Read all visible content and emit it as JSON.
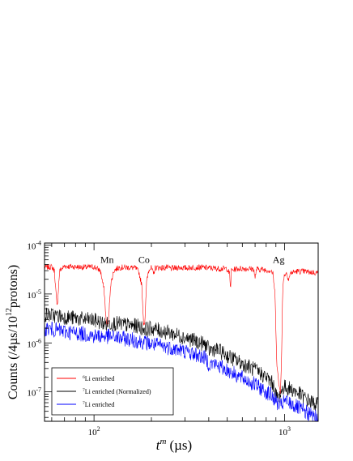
{
  "chart_data": {
    "type": "line",
    "xlabel_base": "t",
    "xlabel_sup": "m",
    "xlabel_units": "(µs)",
    "ylabel_main": "Counts (/4µs/10",
    "ylabel_sup": "12",
    "ylabel_tail": "protons)",
    "x_scale": "log",
    "y_scale": "log",
    "xlim": [
      55,
      1500
    ],
    "ylim": [
      2.5e-08,
      0.00011
    ],
    "x_ticks": [
      {
        "value": 100,
        "base": "10",
        "exp": "2"
      },
      {
        "value": 1000,
        "base": "10",
        "exp": "3"
      }
    ],
    "y_ticks": [
      {
        "value": 1e-07,
        "base": "10",
        "exp": "-7"
      },
      {
        "value": 1e-06,
        "base": "10",
        "exp": "-6"
      },
      {
        "value": 1e-05,
        "base": "10",
        "exp": "-5"
      },
      {
        "value": 0.0001,
        "base": "10",
        "exp": "-4"
      }
    ],
    "legend_position": "bottom-left",
    "series": [
      {
        "name_sup": "6",
        "name": "Li enriched",
        "color": "#ff0000",
        "noise": 0.06,
        "points": [
          [
            55,
            3.5e-05
          ],
          [
            60,
            3.6e-05
          ],
          [
            62,
            3e-05
          ],
          [
            64,
            5e-06
          ],
          [
            66,
            3e-05
          ],
          [
            70,
            3.7e-05
          ],
          [
            80,
            3.6e-05
          ],
          [
            90,
            3.5e-05
          ],
          [
            100,
            3.6e-05
          ],
          [
            108,
            3e-05
          ],
          [
            113,
            1.2e-05
          ],
          [
            116,
            2.5e-06
          ],
          [
            119,
            2.5e-06
          ],
          [
            122,
            1.5e-05
          ],
          [
            127,
            3e-05
          ],
          [
            135,
            3.5e-05
          ],
          [
            150,
            3.5e-05
          ],
          [
            165,
            3.4e-05
          ],
          [
            172,
            2.8e-05
          ],
          [
            178,
            1.5e-05
          ],
          [
            182,
            2.6e-06
          ],
          [
            185,
            2.6e-06
          ],
          [
            189,
            2e-05
          ],
          [
            195,
            3.4e-05
          ],
          [
            200,
            3.4e-05
          ],
          [
            205,
            2.5e-05
          ],
          [
            209,
            3.4e-05
          ],
          [
            215,
            3.5e-05
          ],
          [
            230,
            3.4e-05
          ],
          [
            240,
            3.5e-05
          ],
          [
            255,
            3.3e-05
          ],
          [
            280,
            3.5e-05
          ],
          [
            300,
            3.4e-05
          ],
          [
            330,
            3.5e-05
          ],
          [
            360,
            3.5e-05
          ],
          [
            400,
            3.4e-05
          ],
          [
            450,
            3.3e-05
          ],
          [
            500,
            3.3e-05
          ],
          [
            515,
            2.5e-05
          ],
          [
            520,
            1.2e-05
          ],
          [
            525,
            3e-05
          ],
          [
            560,
            3.3e-05
          ],
          [
            600,
            3.3e-05
          ],
          [
            650,
            3.3e-05
          ],
          [
            690,
            3.2e-05
          ],
          [
            700,
            2e-05
          ],
          [
            710,
            3.2e-05
          ],
          [
            760,
            3.2e-05
          ],
          [
            800,
            3.1e-05
          ],
          [
            850,
            3e-05
          ],
          [
            870,
            2.5e-05
          ],
          [
            890,
            1e-05
          ],
          [
            910,
            4e-07
          ],
          [
            930,
            1.5e-07
          ],
          [
            950,
            1e-07
          ],
          [
            965,
            6e-07
          ],
          [
            975,
            8e-06
          ],
          [
            985,
            2e-05
          ],
          [
            1000,
            2.5e-05
          ],
          [
            1025,
            2.7e-05
          ],
          [
            1050,
            2e-05
          ],
          [
            1075,
            2.7e-05
          ],
          [
            1150,
            2.9e-05
          ],
          [
            1250,
            2.9e-05
          ],
          [
            1350,
            2.8e-05
          ],
          [
            1500,
            2.7e-05
          ]
        ]
      },
      {
        "name_sup": "7",
        "name": "Li enriched (Normalized)",
        "color": "#000000",
        "noise": 0.16,
        "points": [
          [
            55,
            3.8e-06
          ],
          [
            60,
            3.7e-06
          ],
          [
            70,
            3.4e-06
          ],
          [
            80,
            3.2e-06
          ],
          [
            90,
            3e-06
          ],
          [
            100,
            2.9e-06
          ],
          [
            110,
            2.6e-06
          ],
          [
            115,
            2.4e-06
          ],
          [
            120,
            2.5e-06
          ],
          [
            130,
            2.5e-06
          ],
          [
            150,
            2.3e-06
          ],
          [
            170,
            2.2e-06
          ],
          [
            180,
            2e-06
          ],
          [
            190,
            1.9e-06
          ],
          [
            200,
            2e-06
          ],
          [
            220,
            1.8e-06
          ],
          [
            250,
            1.6e-06
          ],
          [
            300,
            1.3e-06
          ],
          [
            350,
            1.05e-06
          ],
          [
            390,
            9e-07
          ],
          [
            400,
            7e-07
          ],
          [
            420,
            7.5e-07
          ],
          [
            450,
            7e-07
          ],
          [
            500,
            5.5e-07
          ],
          [
            550,
            4.5e-07
          ],
          [
            600,
            3.8e-07
          ],
          [
            700,
            2.8e-07
          ],
          [
            800,
            2e-07
          ],
          [
            850,
            1.6e-07
          ],
          [
            880,
            1.3e-07
          ],
          [
            900,
            9e-08
          ],
          [
            920,
            7e-08
          ],
          [
            950,
            9e-08
          ],
          [
            980,
            1.2e-07
          ],
          [
            1000,
            1.25e-07
          ],
          [
            1100,
            1.1e-07
          ],
          [
            1200,
            9e-08
          ],
          [
            1300,
            7e-08
          ],
          [
            1400,
            6e-08
          ],
          [
            1500,
            5.5e-08
          ]
        ]
      },
      {
        "name_sup": "7",
        "name": "Li enriched",
        "color": "#0000ff",
        "noise": 0.16,
        "points": [
          [
            55,
            2e-06
          ],
          [
            60,
            1.9e-06
          ],
          [
            70,
            1.7e-06
          ],
          [
            80,
            1.6e-06
          ],
          [
            90,
            1.5e-06
          ],
          [
            100,
            1.4e-06
          ],
          [
            120,
            1.35e-06
          ],
          [
            150,
            1.2e-06
          ],
          [
            180,
            1.05e-06
          ],
          [
            200,
            9.5e-07
          ],
          [
            250,
            8e-07
          ],
          [
            300,
            6.8e-07
          ],
          [
            350,
            5.6e-07
          ],
          [
            390,
            4.8e-07
          ],
          [
            400,
            3.6e-07
          ],
          [
            420,
            3.8e-07
          ],
          [
            450,
            3.4e-07
          ],
          [
            500,
            2.8e-07
          ],
          [
            550,
            2.3e-07
          ],
          [
            600,
            1.9e-07
          ],
          [
            700,
            1.4e-07
          ],
          [
            800,
            1e-07
          ],
          [
            850,
            8.5e-08
          ],
          [
            900,
            6.5e-08
          ],
          [
            950,
            5e-08
          ],
          [
            1000,
            6.5e-08
          ],
          [
            1100,
            5.5e-08
          ],
          [
            1200,
            4.5e-08
          ],
          [
            1300,
            3.8e-08
          ],
          [
            1400,
            3.3e-08
          ],
          [
            1500,
            3e-08
          ]
        ]
      }
    ],
    "annotations": [
      {
        "text": "Mn",
        "x": 117,
        "y": 5e-05
      },
      {
        "text": "Co",
        "x": 183,
        "y": 5e-05
      },
      {
        "text": "Ag",
        "x": 930,
        "y": 5e-05
      }
    ]
  }
}
